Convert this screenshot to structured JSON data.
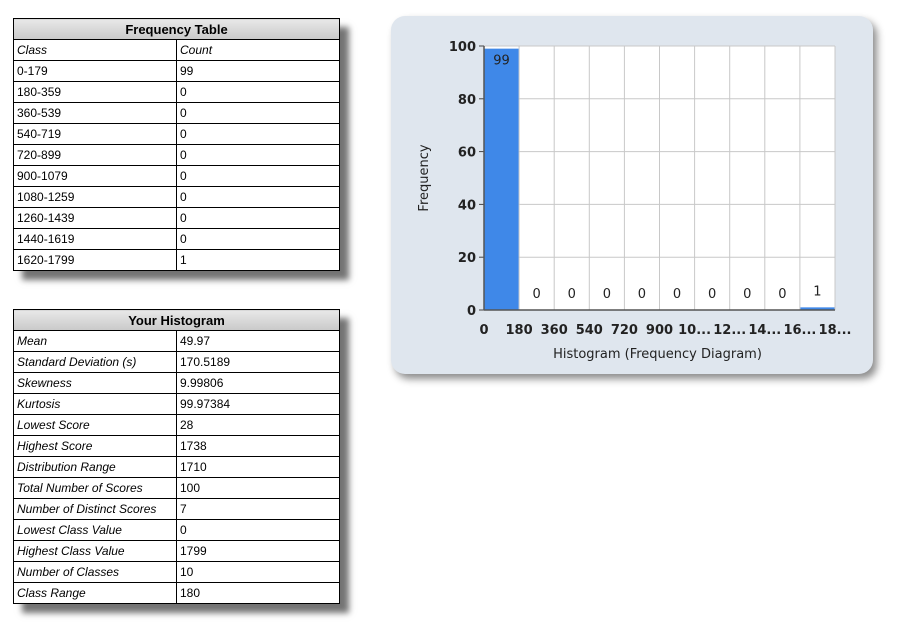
{
  "frequency_table": {
    "title": "Frequency Table",
    "headers": [
      "Class",
      "Count"
    ],
    "rows": [
      [
        "0-179",
        "99"
      ],
      [
        "180-359",
        "0"
      ],
      [
        "360-539",
        "0"
      ],
      [
        "540-719",
        "0"
      ],
      [
        "720-899",
        "0"
      ],
      [
        "900-1079",
        "0"
      ],
      [
        "1080-1259",
        "0"
      ],
      [
        "1260-1439",
        "0"
      ],
      [
        "1440-1619",
        "0"
      ],
      [
        "1620-1799",
        "1"
      ]
    ]
  },
  "histogram_table": {
    "title": "Your Histogram",
    "rows": [
      [
        "Mean",
        "49.97"
      ],
      [
        "Standard Deviation (s)",
        "170.5189"
      ],
      [
        "Skewness",
        "9.99806"
      ],
      [
        "Kurtosis",
        "99.97384"
      ],
      [
        "Lowest Score",
        "28"
      ],
      [
        "Highest Score",
        "1738"
      ],
      [
        "Distribution Range",
        "1710"
      ],
      [
        "Total Number of Scores",
        "100"
      ],
      [
        "Number of Distinct Scores",
        "7"
      ],
      [
        "Lowest Class Value",
        "0"
      ],
      [
        "Highest Class Value",
        "1799"
      ],
      [
        "Number of Classes",
        "10"
      ],
      [
        "Class Range",
        "180"
      ]
    ]
  },
  "chart_data": {
    "type": "bar",
    "categories": [
      "0-179",
      "180-359",
      "360-539",
      "540-719",
      "720-899",
      "900-1079",
      "1080-1259",
      "1260-1439",
      "1440-1619",
      "1620-1799"
    ],
    "values": [
      99,
      0,
      0,
      0,
      0,
      0,
      0,
      0,
      0,
      1
    ],
    "x_tick_labels": [
      "0",
      "180",
      "360",
      "540",
      "720",
      "900",
      "10...",
      "12...",
      "14...",
      "16...",
      "18..."
    ],
    "y_ticks": [
      0,
      20,
      40,
      60,
      80,
      100
    ],
    "ylim": [
      0,
      100
    ],
    "xlabel": "Histogram (Frequency Diagram)",
    "ylabel": "Frequency",
    "title": "",
    "grid": true,
    "bar_color": "#3f88e8",
    "plot_background": "#ffffff",
    "panel_background": "#dfe6ee"
  }
}
